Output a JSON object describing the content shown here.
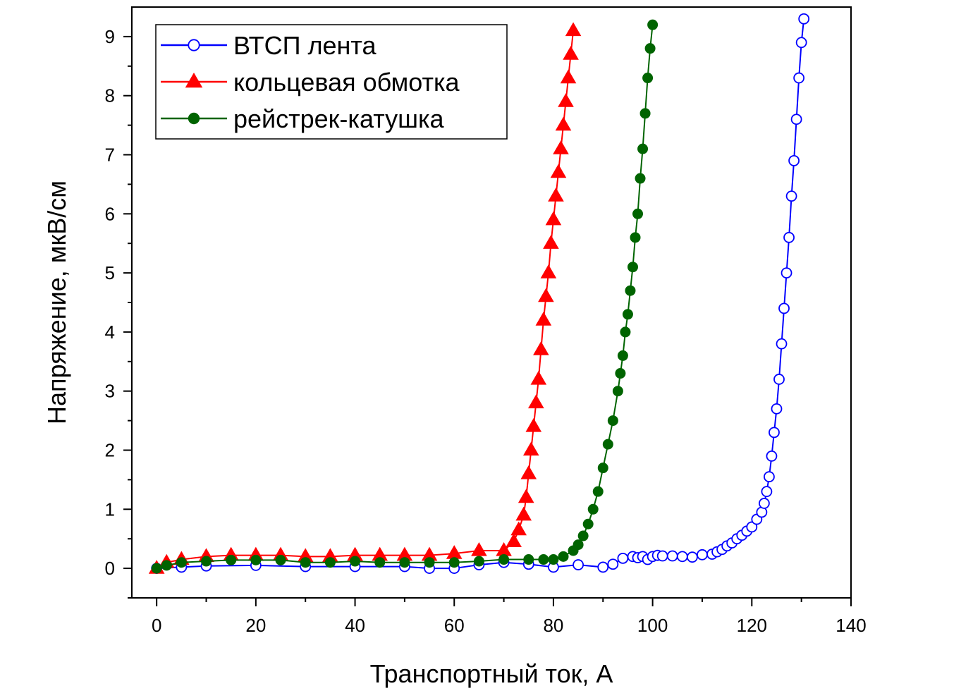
{
  "chart_data": {
    "type": "scatter",
    "title": "",
    "xlabel": "Транспортный ток, А",
    "ylabel": "Напряжение, мкВ/см",
    "xlim": [
      -5,
      140
    ],
    "ylim": [
      -0.5,
      9.5
    ],
    "xticks": [
      0,
      20,
      40,
      60,
      80,
      100,
      120,
      140
    ],
    "yticks": [
      0,
      1,
      2,
      3,
      4,
      5,
      6,
      7,
      8,
      9
    ],
    "grid": false,
    "legend_position": "top-left",
    "series": [
      {
        "name": "ВТСП лента",
        "color": "#0000ff",
        "marker": "open-circle",
        "x": [
          0,
          5,
          10,
          20,
          30,
          40,
          50,
          55,
          60,
          65,
          70,
          75,
          80,
          85,
          90,
          92,
          94,
          96,
          97,
          98,
          99,
          100,
          101,
          102,
          104,
          106,
          108,
          110,
          112,
          113,
          114,
          115,
          116,
          117,
          118,
          119,
          120,
          121,
          122,
          122.5,
          123,
          123.5,
          124,
          124.5,
          125,
          125.5,
          126,
          126.5,
          127,
          127.5,
          128,
          128.5,
          129,
          129.5,
          130,
          130.5
        ],
        "y": [
          0,
          0.02,
          0.04,
          0.05,
          0.03,
          0.03,
          0.03,
          0.0,
          0.0,
          0.06,
          0.1,
          0.07,
          0.02,
          0.06,
          0.02,
          0.07,
          0.17,
          0.2,
          0.18,
          0.2,
          0.15,
          0.2,
          0.22,
          0.21,
          0.21,
          0.2,
          0.19,
          0.23,
          0.24,
          0.28,
          0.32,
          0.38,
          0.43,
          0.5,
          0.56,
          0.63,
          0.7,
          0.83,
          0.95,
          1.1,
          1.3,
          1.55,
          1.9,
          2.3,
          2.7,
          3.2,
          3.8,
          4.4,
          5.0,
          5.6,
          6.3,
          6.9,
          7.6,
          8.3,
          8.9,
          9.3
        ]
      },
      {
        "name": "кольцевая обмотка",
        "color": "#ff0000",
        "marker": "filled-triangle",
        "x": [
          0,
          2,
          5,
          10,
          15,
          20,
          25,
          30,
          35,
          40,
          45,
          50,
          55,
          60,
          65,
          70,
          72,
          73,
          74,
          74.5,
          75,
          75.5,
          76,
          76.5,
          77,
          77.5,
          78,
          78.5,
          79,
          79.5,
          80,
          80.5,
          81,
          81.5,
          82,
          82.5,
          83,
          83.5,
          84
        ],
        "y": [
          0,
          0.1,
          0.15,
          0.2,
          0.22,
          0.22,
          0.22,
          0.2,
          0.2,
          0.22,
          0.22,
          0.22,
          0.22,
          0.25,
          0.3,
          0.3,
          0.45,
          0.65,
          0.9,
          1.2,
          1.6,
          2.0,
          2.4,
          2.8,
          3.2,
          3.7,
          4.2,
          4.6,
          5.0,
          5.5,
          5.9,
          6.3,
          6.7,
          7.1,
          7.5,
          7.9,
          8.3,
          8.7,
          9.1
        ]
      },
      {
        "name": "рейстрек-катушка",
        "color": "#006400",
        "marker": "filled-circle",
        "x": [
          0,
          2,
          5,
          10,
          15,
          20,
          25,
          30,
          35,
          40,
          45,
          50,
          55,
          60,
          65,
          70,
          75,
          78,
          80,
          82,
          84,
          85,
          86,
          87,
          88,
          89,
          90,
          91,
          92,
          93,
          93.5,
          94,
          94.5,
          95,
          95.5,
          96,
          96.5,
          97,
          97.5,
          98,
          98.5,
          99,
          99.5,
          100
        ],
        "y": [
          0,
          0.05,
          0.1,
          0.12,
          0.14,
          0.14,
          0.14,
          0.1,
          0.1,
          0.12,
          0.1,
          0.1,
          0.1,
          0.1,
          0.12,
          0.15,
          0.15,
          0.15,
          0.15,
          0.2,
          0.3,
          0.4,
          0.55,
          0.75,
          1.0,
          1.3,
          1.7,
          2.1,
          2.5,
          3.0,
          3.3,
          3.6,
          4.0,
          4.3,
          4.7,
          5.1,
          5.6,
          6.0,
          6.6,
          7.1,
          7.7,
          8.3,
          8.8,
          9.2
        ]
      }
    ]
  }
}
